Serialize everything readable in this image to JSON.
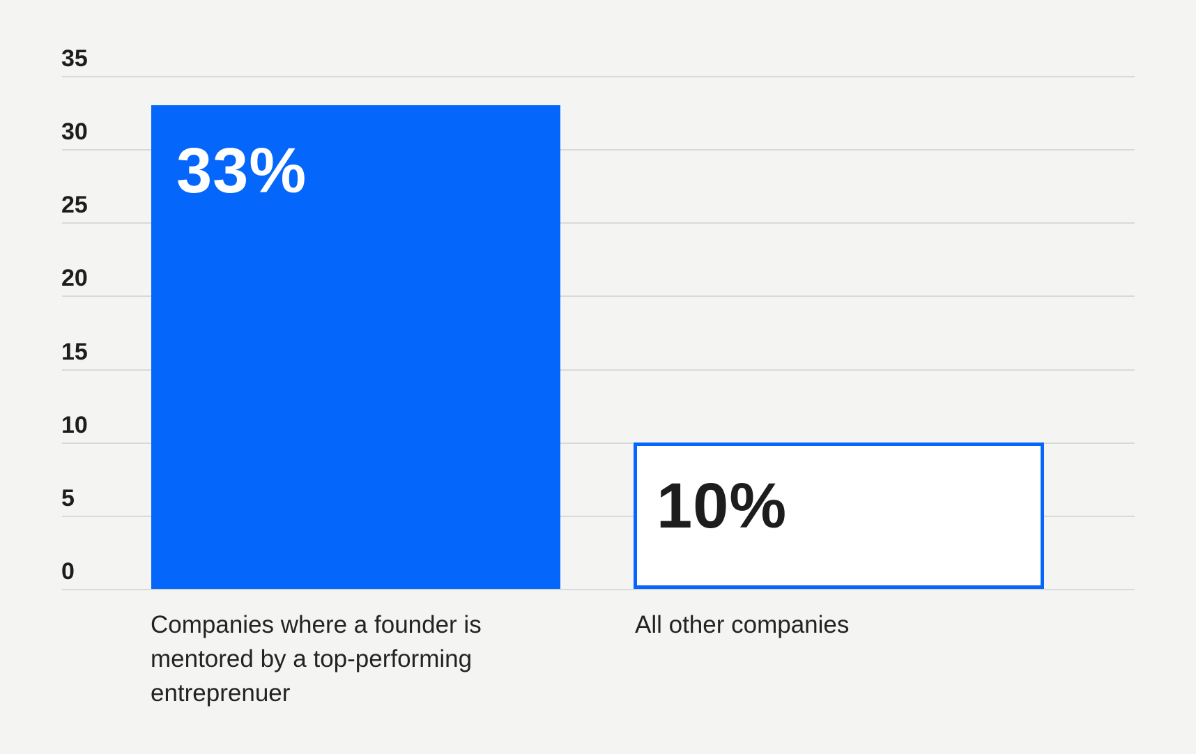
{
  "chart_data": {
    "type": "bar",
    "title": "",
    "xlabel": "",
    "ylabel": "",
    "ylim": [
      0,
      35
    ],
    "yticks": [
      0,
      5,
      10,
      15,
      20,
      25,
      30,
      35
    ],
    "grid": true,
    "legend": false,
    "categories": [
      "Companies where a founder is\nmentored by a top-performing\nentreprenuer",
      "All other companies"
    ],
    "values": [
      33,
      10
    ],
    "value_labels": [
      "33%",
      "10%"
    ],
    "bar_styles": [
      {
        "fill": "#0566fb",
        "border": "#0566fb",
        "label_color": "#ffffff"
      },
      {
        "fill": "#ffffff",
        "border": "#0566fb",
        "label_color": "#1d1d1d"
      }
    ]
  },
  "colors": {
    "background": "#f4f4f2",
    "accent_blue": "#0566fb",
    "text_dark": "#1d1d1d",
    "gridline": "#d9d9d9"
  }
}
